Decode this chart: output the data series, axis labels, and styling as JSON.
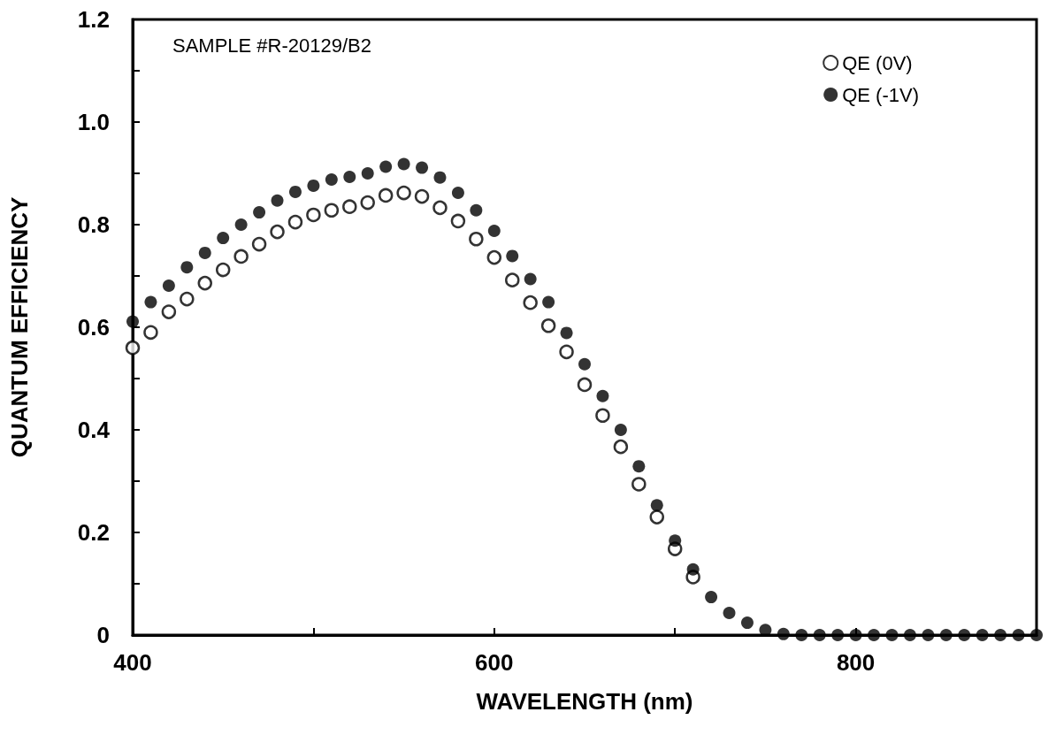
{
  "chart_data": {
    "type": "scatter",
    "xlabel": "WAVELENGTH (nm)",
    "ylabel": "QUANTUM EFFICIENCY",
    "annotations": [
      "SAMPLE #R-20129/B2"
    ],
    "x": [
      400,
      410,
      420,
      430,
      440,
      450,
      460,
      470,
      480,
      490,
      500,
      510,
      520,
      530,
      540,
      550,
      560,
      570,
      580,
      590,
      600,
      610,
      620,
      630,
      640,
      650,
      660,
      670,
      680,
      690,
      700,
      710,
      720,
      730,
      740,
      750,
      760,
      770,
      780,
      790,
      800,
      810,
      820,
      830,
      840,
      850,
      860,
      870,
      880,
      890,
      900
    ],
    "series": [
      {
        "name": "QE (0V)",
        "color": "#000000",
        "marker": "open circle",
        "values": [
          0.56,
          0.59,
          0.63,
          0.655,
          0.686,
          0.712,
          0.738,
          0.762,
          0.786,
          0.805,
          0.819,
          0.828,
          0.835,
          0.843,
          0.857,
          0.862,
          0.855,
          0.833,
          0.807,
          0.772,
          0.736,
          0.692,
          0.648,
          0.603,
          0.552,
          0.488,
          0.428,
          0.367,
          0.294,
          0.23,
          0.168,
          0.113,
          null,
          null,
          null,
          null,
          null,
          null,
          null,
          null,
          null,
          null,
          null,
          null,
          null,
          null,
          null,
          null,
          null,
          null,
          null
        ]
      },
      {
        "name": "QE (-1V)",
        "color": "#000000",
        "marker": "circle",
        "values": [
          0.611,
          0.649,
          0.681,
          0.717,
          0.745,
          0.774,
          0.8,
          0.824,
          0.847,
          0.864,
          0.876,
          0.888,
          0.893,
          0.9,
          0.913,
          0.918,
          0.911,
          0.892,
          0.862,
          0.828,
          0.788,
          0.739,
          0.694,
          0.649,
          0.589,
          0.528,
          0.466,
          0.4,
          0.329,
          0.253,
          0.184,
          0.128,
          0.074,
          0.043,
          0.024,
          0.01,
          0.002,
          0,
          0,
          0,
          0,
          0,
          0,
          0,
          0,
          0,
          0,
          0,
          0,
          0,
          0
        ]
      }
    ],
    "xlim": [
      400,
      900
    ],
    "xticks": [
      400,
      {
        "value": 500,
        "label": null
      },
      600,
      {
        "value": 700,
        "label": null
      },
      800,
      {
        "value": 900,
        "label": null
      }
    ],
    "ylim": [
      0,
      1.2
    ],
    "yticks": [
      0,
      {
        "value": 0.1,
        "label": null
      },
      0.2,
      {
        "value": 0.3,
        "label": null
      },
      0.4,
      {
        "value": 0.5,
        "label": null
      },
      0.6,
      {
        "value": 0.7,
        "label": null
      },
      0.8,
      {
        "value": 0.9,
        "label": null
      },
      {
        "value": 1,
        "label": "1.0"
      },
      {
        "value": 1.1,
        "label": null
      },
      1.2
    ],
    "grid": false,
    "legend": "top right"
  }
}
